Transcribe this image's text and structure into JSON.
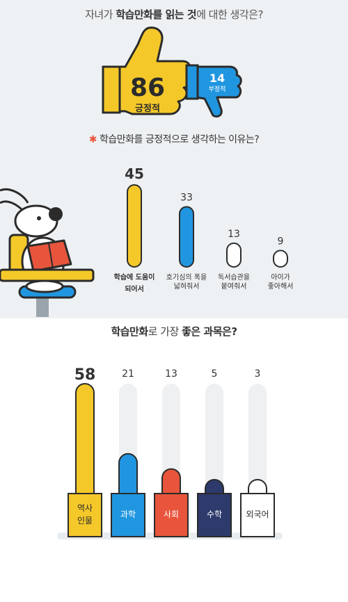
{
  "section1": {
    "title_parts": [
      "자녀가 ",
      "학습만화를 읽는 것",
      "에 대한 생각은?"
    ],
    "positive": {
      "value": "86",
      "label": "긍정적"
    },
    "negative": {
      "value": "14",
      "label": "부정적"
    },
    "colors": {
      "positive": "#f5c82a",
      "negative": "#2196e0"
    }
  },
  "section2": {
    "star": "✱",
    "title": "학습만화를 긍정적으로 생각하는 이유는?"
  },
  "section3": {
    "title_parts": [
      "학습만화",
      "로 가장 ",
      "좋은 과목은?"
    ]
  },
  "chart_data": [
    {
      "type": "bar",
      "categories": [
        [
          "학습에 도움이",
          "되어서"
        ],
        [
          "호기심의 폭을",
          "넓혀줘서"
        ],
        [
          "독서습관을",
          "붙여줘서"
        ],
        [
          "아이가",
          "좋아해서"
        ]
      ],
      "values": [
        45,
        33,
        13,
        9
      ],
      "colors": [
        "#f5c82a",
        "#2196e0",
        "#ffffff",
        "#ffffff"
      ],
      "ylim": [
        0,
        45
      ]
    },
    {
      "type": "bar",
      "categories": [
        [
          "역사",
          "인물"
        ],
        [
          "과학"
        ],
        [
          "사회"
        ],
        [
          "수학"
        ],
        [
          "외국어"
        ]
      ],
      "values": [
        58,
        21,
        13,
        5,
        3
      ],
      "colors": [
        "#f5c82a",
        "#2196e0",
        "#e8553c",
        "#2d3a6b",
        "#ffffff"
      ],
      "ylim": [
        0,
        58
      ]
    }
  ]
}
